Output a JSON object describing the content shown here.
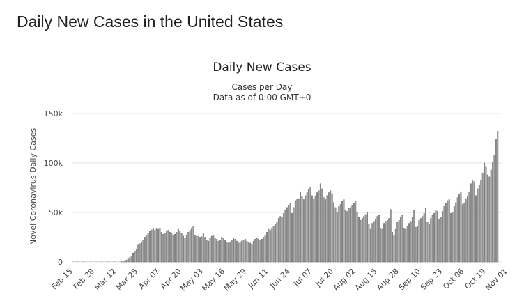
{
  "page_title": "Daily New Cases in the United States",
  "chart_data": {
    "type": "bar",
    "title": "Daily New Cases",
    "subtitle_lines": [
      "Cases per Day",
      "Data as of 0:00 GMT+0"
    ],
    "ylabel": "Novel Coronavirus Daily Cases",
    "xlabel": "",
    "ylim": [
      0,
      150000
    ],
    "y_ticks": [
      0,
      50000,
      100000,
      150000
    ],
    "y_tick_labels": [
      "0",
      "50k",
      "100k",
      "150k"
    ],
    "x_tick_labels": [
      "Feb 15",
      "Feb 28",
      "Mar 12",
      "Mar 25",
      "Apr 07",
      "Apr 20",
      "May 03",
      "May 16",
      "May 29",
      "Jun 11",
      "Jun 24",
      "Jul 07",
      "Jul 20",
      "Aug 02",
      "Aug 15",
      "Aug 28",
      "Sep 10",
      "Sep 23",
      "Oct 06",
      "Oct 19",
      "Nov 01"
    ],
    "first_date": "Feb 15",
    "series": [
      {
        "name": "Daily Cases",
        "values": [
          0,
          0,
          0,
          0,
          0,
          0,
          0,
          0,
          0,
          0,
          0,
          0,
          0,
          0,
          0,
          0,
          0,
          0,
          0,
          0,
          0,
          0,
          0,
          0,
          0,
          0,
          0,
          0,
          0,
          300,
          700,
          1200,
          2000,
          3000,
          4500,
          6000,
          9000,
          11000,
          13000,
          17000,
          18500,
          20000,
          22000,
          25000,
          27000,
          29000,
          31000,
          32500,
          33500,
          32000,
          34000,
          33000,
          34000,
          30000,
          28000,
          29000,
          31000,
          32000,
          30000,
          29000,
          27000,
          28000,
          30000,
          33000,
          31500,
          29000,
          26000,
          24000,
          27000,
          30000,
          32000,
          34000,
          36000,
          27000,
          26000,
          26000,
          25000,
          25500,
          29000,
          25000,
          22000,
          21000,
          24000,
          26000,
          27000,
          24000,
          23000,
          21000,
          22000,
          25000,
          24000,
          22000,
          20000,
          19000,
          20000,
          22000,
          24000,
          23000,
          21000,
          19000,
          20000,
          21000,
          22000,
          23000,
          21000,
          20000,
          19000,
          18000,
          21000,
          23000,
          24000,
          23000,
          22000,
          23000,
          25000,
          27000,
          30000,
          33000,
          32000,
          34000,
          36000,
          38000,
          40000,
          44000,
          46000,
          45000,
          49000,
          52000,
          55000,
          57000,
          59000,
          49000,
          55000,
          62000,
          63000,
          64000,
          71000,
          66000,
          63000,
          67000,
          70000,
          73000,
          75000,
          67000,
          64000,
          66000,
          70000,
          72000,
          79000,
          74000,
          65000,
          63000,
          67000,
          70000,
          72000,
          69000,
          60000,
          55000,
          50000,
          56000,
          58000,
          61000,
          63000,
          52000,
          51000,
          54000,
          55000,
          57000,
          59000,
          61000,
          50000,
          45000,
          42000,
          44000,
          46000,
          48000,
          50000,
          38000,
          33000,
          39000,
          41000,
          43000,
          46000,
          47000,
          34000,
          33000,
          39000,
          41000,
          42000,
          44000,
          53000,
          30000,
          27000,
          33000,
          40000,
          42000,
          45000,
          47000,
          34000,
          33000,
          36000,
          39000,
          41000,
          45000,
          52000,
          35000,
          36000,
          42000,
          44000,
          46000,
          49000,
          54000,
          40000,
          38000,
          44000,
          47000,
          49000,
          52000,
          51000,
          43000,
          45000,
          51000,
          56000,
          59000,
          62000,
          63000,
          49000,
          50000,
          56000,
          60000,
          65000,
          68000,
          71000,
          58000,
          59000,
          64000,
          66000,
          71000,
          79000,
          82000,
          81000,
          67000,
          74000,
          78000,
          83000,
          90000,
          100000,
          96000,
          88000,
          86000,
          93000,
          101000,
          108000,
          124000,
          132000
        ]
      }
    ]
  }
}
